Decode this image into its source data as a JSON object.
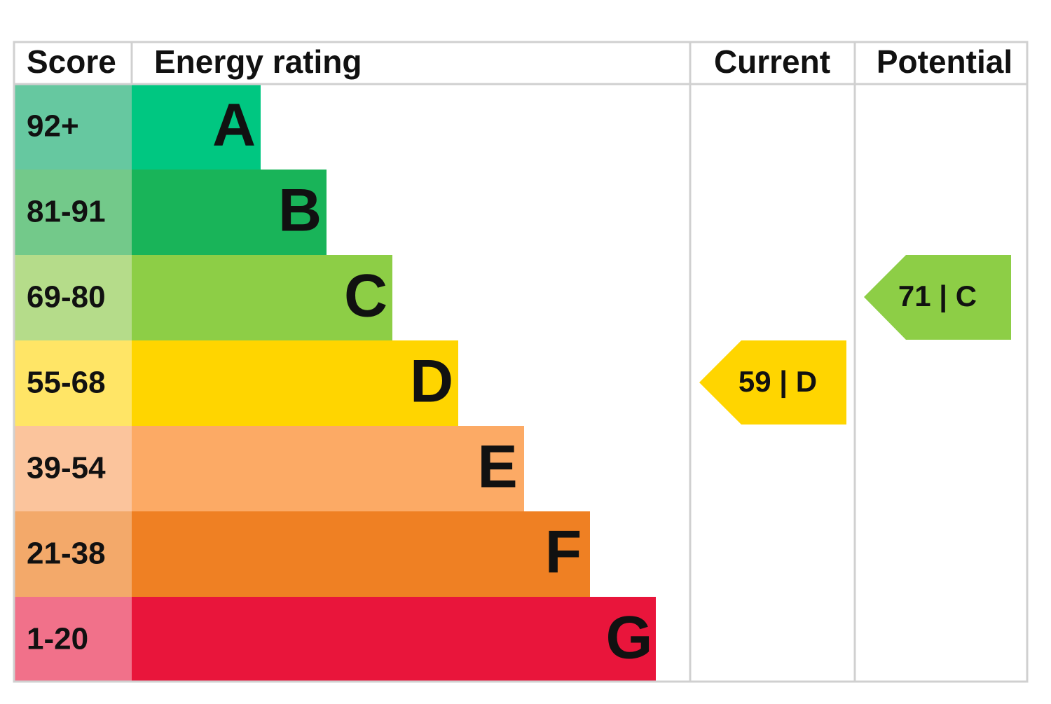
{
  "header": {
    "score": "Score",
    "rating": "Energy rating",
    "current": "Current",
    "potential": "Potential"
  },
  "rows": [
    {
      "score": "92+",
      "letter": "A",
      "score_color": "#66c8a0",
      "bar_color": "#00c781"
    },
    {
      "score": "81-91",
      "letter": "B",
      "score_color": "#73c98a",
      "bar_color": "#19b459"
    },
    {
      "score": "69-80",
      "letter": "C",
      "score_color": "#b5dc8a",
      "bar_color": "#8dce46"
    },
    {
      "score": "55-68",
      "letter": "D",
      "score_color": "#ffe566",
      "bar_color": "#ffd500"
    },
    {
      "score": "39-54",
      "letter": "E",
      "score_color": "#fbc49c",
      "bar_color": "#fcaa65"
    },
    {
      "score": "21-38",
      "letter": "F",
      "score_color": "#f3a96a",
      "bar_color": "#ef8023"
    },
    {
      "score": "1-20",
      "letter": "G",
      "score_color": "#f1718a",
      "bar_color": "#e9153b"
    }
  ],
  "current": {
    "label": "59 | D",
    "color": "#ffd500"
  },
  "potential": {
    "label": "71 | C",
    "color": "#8dce46"
  }
}
